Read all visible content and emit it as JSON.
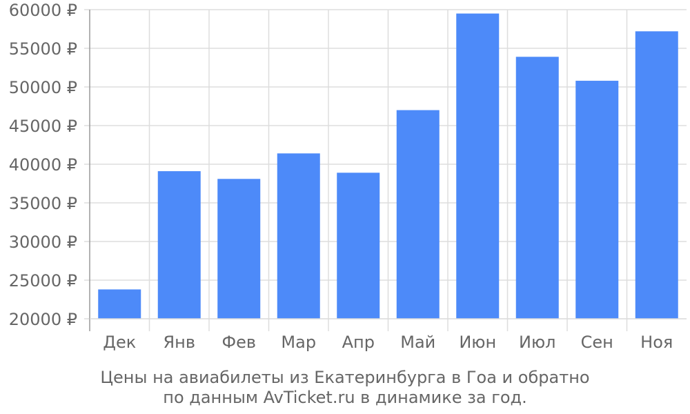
{
  "chart_data": {
    "type": "bar",
    "categories": [
      "Дек",
      "Янв",
      "Фев",
      "Мар",
      "Апр",
      "Май",
      "Июн",
      "Июл",
      "Сен",
      "Ноя"
    ],
    "values": [
      23800,
      39100,
      38100,
      41400,
      38900,
      47000,
      59500,
      53900,
      50800,
      57200
    ],
    "ylim": [
      20000,
      60000
    ],
    "yticks": [
      20000,
      25000,
      30000,
      35000,
      40000,
      45000,
      50000,
      55000,
      60000
    ],
    "ytick_labels": [
      "20000 ₽",
      "25000 ₽",
      "30000 ₽",
      "35000 ₽",
      "40000 ₽",
      "45000 ₽",
      "50000 ₽",
      "55000 ₽",
      "60000 ₽"
    ],
    "grid": true,
    "colors": {
      "bar": "#4d8af9",
      "grid": "#dddddd",
      "axis": "#999999",
      "text": "#666666"
    }
  },
  "caption": {
    "line1": "Цены на авиабилеты из Екатеринбурга в Гоа и обратно",
    "line2": "по данным AvTicket.ru в динамике за год."
  }
}
